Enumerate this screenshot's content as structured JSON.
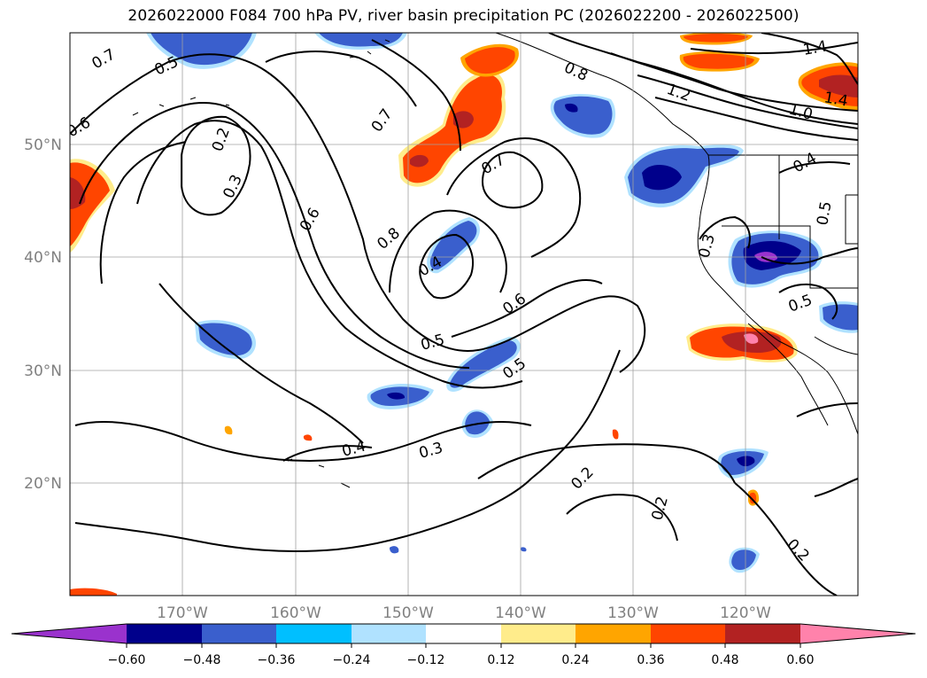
{
  "title": "2026022000 F084 700 hPa PV, river basin precipitation PC (2026022200 - 2026022500)",
  "map": {
    "lat_labels": [
      "50°N",
      "40°N",
      "30°N",
      "20°N"
    ],
    "lon_labels": [
      "170°W",
      "160°W",
      "150°W",
      "140°W",
      "130°W",
      "120°W"
    ],
    "gridlines": true,
    "pv_contour_labels": [
      "0.7",
      "0.5",
      "0.6",
      "0.2",
      "0.3",
      "0.6",
      "0.7",
      "0.8",
      "0.7",
      "0.4",
      "0.5",
      "0.6",
      "0.5",
      "0.4",
      "0.3",
      "0.2",
      "0.2",
      "0.2",
      "0.8",
      "1.2",
      "1.0",
      "1.4",
      "1.4",
      "0.4",
      "0.5",
      "0.3",
      "0.5"
    ]
  },
  "colorbar": {
    "ticks": [
      "−0.60",
      "−0.48",
      "−0.36",
      "−0.24",
      "−0.12",
      "0.12",
      "0.24",
      "0.36",
      "0.48",
      "0.60"
    ],
    "colors": [
      "#9a32cd",
      "#00008b",
      "#3a5fcd",
      "#00bfff",
      "#b0e2ff",
      "#ffffff",
      "#ffec8b",
      "#ffa500",
      "#ff4500",
      "#b22222",
      "#ff82ab"
    ],
    "extend": "both"
  }
}
